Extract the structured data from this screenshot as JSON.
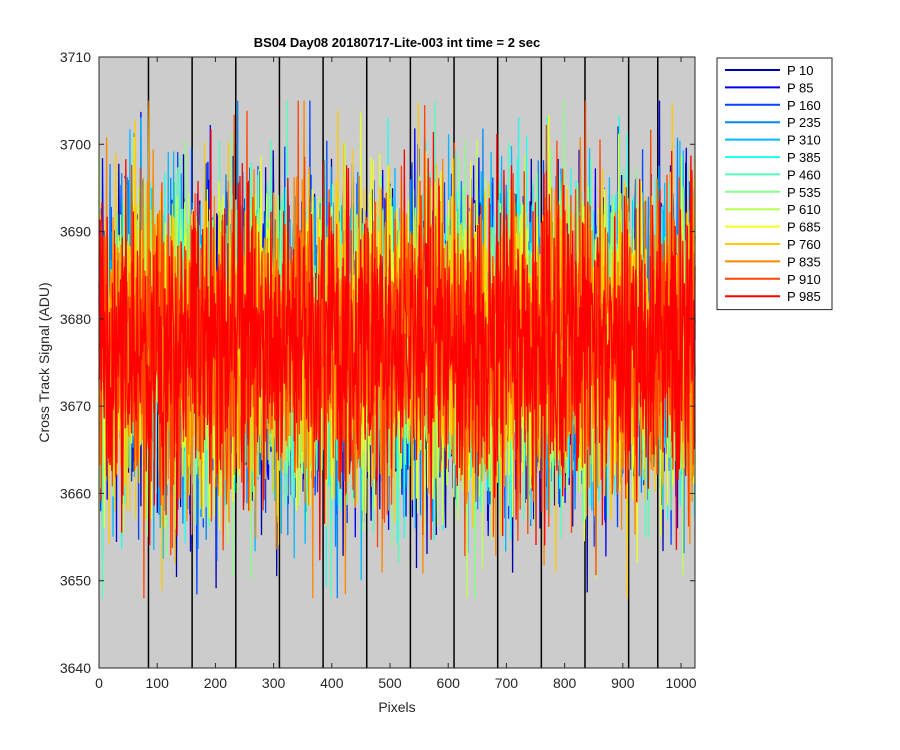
{
  "chart_data": {
    "type": "line",
    "title": "BS04 Day08 20180717-Lite-003 int time = 2 sec",
    "xlabel": "Pixels",
    "ylabel": "Cross Track Signal (ADU)",
    "xlim": [
      0,
      1024
    ],
    "ylim": [
      3640,
      3710
    ],
    "xticks": [
      0,
      100,
      200,
      300,
      400,
      500,
      600,
      700,
      800,
      900,
      1000
    ],
    "yticks": [
      3640,
      3650,
      3660,
      3670,
      3680,
      3690,
      3700,
      3710
    ],
    "background": "#cccccc",
    "grid": false,
    "vertical_lines": [
      85,
      160,
      235,
      310,
      385,
      460,
      535,
      610,
      685,
      760,
      835,
      910,
      960
    ],
    "legend_position": "outside-right-top",
    "noise_model": {
      "mean": 3677,
      "spread_sd": 9,
      "min": 3648,
      "max": 3705,
      "n_points": 1024
    },
    "series": [
      {
        "name": "P 10",
        "color": "#0000aa"
      },
      {
        "name": "P 85",
        "color": "#0000ee"
      },
      {
        "name": "P 160",
        "color": "#0044ff"
      },
      {
        "name": "P 235",
        "color": "#0088ff"
      },
      {
        "name": "P 310",
        "color": "#00bbff"
      },
      {
        "name": "P 385",
        "color": "#22ffee"
      },
      {
        "name": "P 460",
        "color": "#55ffbb"
      },
      {
        "name": "P 535",
        "color": "#88ff88"
      },
      {
        "name": "P 610",
        "color": "#bbff55"
      },
      {
        "name": "P 685",
        "color": "#eeff22"
      },
      {
        "name": "P 760",
        "color": "#ffcc00"
      },
      {
        "name": "P 835",
        "color": "#ff8800"
      },
      {
        "name": "P 910",
        "color": "#ff4400"
      },
      {
        "name": "P 985",
        "color": "#ff0000"
      }
    ]
  }
}
